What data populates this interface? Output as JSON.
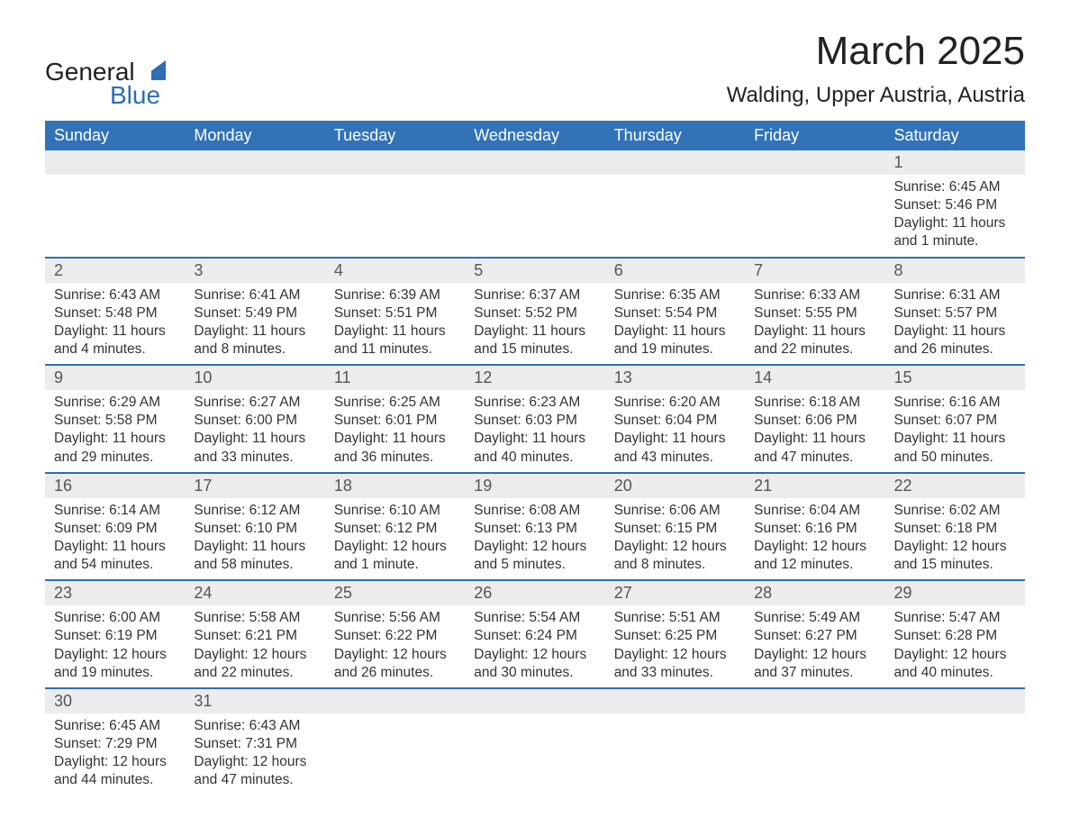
{
  "logo": {
    "word1": "General",
    "word2": "Blue"
  },
  "title": "March 2025",
  "location": "Walding, Upper Austria, Austria",
  "colors": {
    "header_bg": "#3273b8",
    "header_fg": "#ffffff",
    "row_border": "#2d6eb4",
    "daynum_bg": "#ececec",
    "text": "#333333",
    "logo_accent": "#2d6eb4"
  },
  "weekdays": [
    "Sunday",
    "Monday",
    "Tuesday",
    "Wednesday",
    "Thursday",
    "Friday",
    "Saturday"
  ],
  "weeks": [
    [
      null,
      null,
      null,
      null,
      null,
      null,
      {
        "n": "1",
        "sunrise": "6:45 AM",
        "sunset": "5:46 PM",
        "daylight": "11 hours and 1 minute."
      }
    ],
    [
      {
        "n": "2",
        "sunrise": "6:43 AM",
        "sunset": "5:48 PM",
        "daylight": "11 hours and 4 minutes."
      },
      {
        "n": "3",
        "sunrise": "6:41 AM",
        "sunset": "5:49 PM",
        "daylight": "11 hours and 8 minutes."
      },
      {
        "n": "4",
        "sunrise": "6:39 AM",
        "sunset": "5:51 PM",
        "daylight": "11 hours and 11 minutes."
      },
      {
        "n": "5",
        "sunrise": "6:37 AM",
        "sunset": "5:52 PM",
        "daylight": "11 hours and 15 minutes."
      },
      {
        "n": "6",
        "sunrise": "6:35 AM",
        "sunset": "5:54 PM",
        "daylight": "11 hours and 19 minutes."
      },
      {
        "n": "7",
        "sunrise": "6:33 AM",
        "sunset": "5:55 PM",
        "daylight": "11 hours and 22 minutes."
      },
      {
        "n": "8",
        "sunrise": "6:31 AM",
        "sunset": "5:57 PM",
        "daylight": "11 hours and 26 minutes."
      }
    ],
    [
      {
        "n": "9",
        "sunrise": "6:29 AM",
        "sunset": "5:58 PM",
        "daylight": "11 hours and 29 minutes."
      },
      {
        "n": "10",
        "sunrise": "6:27 AM",
        "sunset": "6:00 PM",
        "daylight": "11 hours and 33 minutes."
      },
      {
        "n": "11",
        "sunrise": "6:25 AM",
        "sunset": "6:01 PM",
        "daylight": "11 hours and 36 minutes."
      },
      {
        "n": "12",
        "sunrise": "6:23 AM",
        "sunset": "6:03 PM",
        "daylight": "11 hours and 40 minutes."
      },
      {
        "n": "13",
        "sunrise": "6:20 AM",
        "sunset": "6:04 PM",
        "daylight": "11 hours and 43 minutes."
      },
      {
        "n": "14",
        "sunrise": "6:18 AM",
        "sunset": "6:06 PM",
        "daylight": "11 hours and 47 minutes."
      },
      {
        "n": "15",
        "sunrise": "6:16 AM",
        "sunset": "6:07 PM",
        "daylight": "11 hours and 50 minutes."
      }
    ],
    [
      {
        "n": "16",
        "sunrise": "6:14 AM",
        "sunset": "6:09 PM",
        "daylight": "11 hours and 54 minutes."
      },
      {
        "n": "17",
        "sunrise": "6:12 AM",
        "sunset": "6:10 PM",
        "daylight": "11 hours and 58 minutes."
      },
      {
        "n": "18",
        "sunrise": "6:10 AM",
        "sunset": "6:12 PM",
        "daylight": "12 hours and 1 minute."
      },
      {
        "n": "19",
        "sunrise": "6:08 AM",
        "sunset": "6:13 PM",
        "daylight": "12 hours and 5 minutes."
      },
      {
        "n": "20",
        "sunrise": "6:06 AM",
        "sunset": "6:15 PM",
        "daylight": "12 hours and 8 minutes."
      },
      {
        "n": "21",
        "sunrise": "6:04 AM",
        "sunset": "6:16 PM",
        "daylight": "12 hours and 12 minutes."
      },
      {
        "n": "22",
        "sunrise": "6:02 AM",
        "sunset": "6:18 PM",
        "daylight": "12 hours and 15 minutes."
      }
    ],
    [
      {
        "n": "23",
        "sunrise": "6:00 AM",
        "sunset": "6:19 PM",
        "daylight": "12 hours and 19 minutes."
      },
      {
        "n": "24",
        "sunrise": "5:58 AM",
        "sunset": "6:21 PM",
        "daylight": "12 hours and 22 minutes."
      },
      {
        "n": "25",
        "sunrise": "5:56 AM",
        "sunset": "6:22 PM",
        "daylight": "12 hours and 26 minutes."
      },
      {
        "n": "26",
        "sunrise": "5:54 AM",
        "sunset": "6:24 PM",
        "daylight": "12 hours and 30 minutes."
      },
      {
        "n": "27",
        "sunrise": "5:51 AM",
        "sunset": "6:25 PM",
        "daylight": "12 hours and 33 minutes."
      },
      {
        "n": "28",
        "sunrise": "5:49 AM",
        "sunset": "6:27 PM",
        "daylight": "12 hours and 37 minutes."
      },
      {
        "n": "29",
        "sunrise": "5:47 AM",
        "sunset": "6:28 PM",
        "daylight": "12 hours and 40 minutes."
      }
    ],
    [
      {
        "n": "30",
        "sunrise": "6:45 AM",
        "sunset": "7:29 PM",
        "daylight": "12 hours and 44 minutes."
      },
      {
        "n": "31",
        "sunrise": "6:43 AM",
        "sunset": "7:31 PM",
        "daylight": "12 hours and 47 minutes."
      },
      null,
      null,
      null,
      null,
      null
    ]
  ],
  "labels": {
    "sunrise_prefix": "Sunrise: ",
    "sunset_prefix": "Sunset: ",
    "daylight_prefix": "Daylight: "
  }
}
